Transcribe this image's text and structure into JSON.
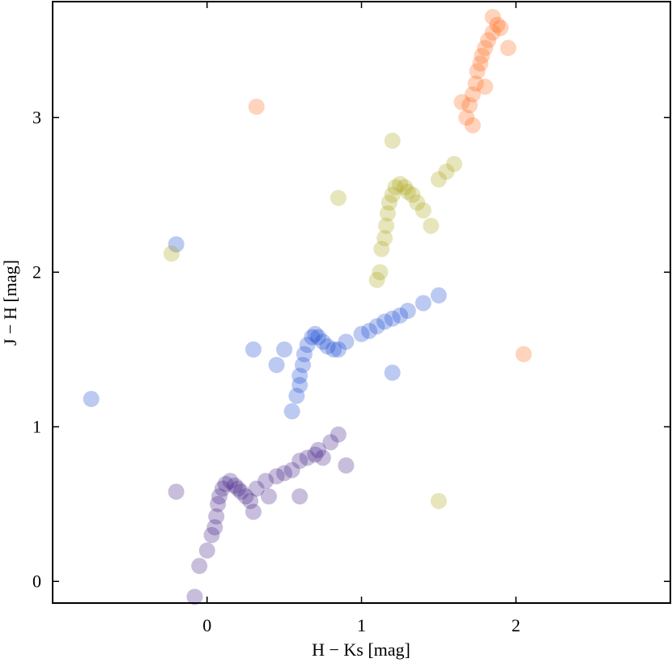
{
  "chart_data": {
    "type": "scatter",
    "xlabel": "H − Ks [mag]",
    "ylabel": "J − H [mag]",
    "xlim": [
      -1.0,
      3.0
    ],
    "ylim": [
      -0.14,
      3.75
    ],
    "xticks": [
      0,
      1,
      2
    ],
    "yticks": [
      0,
      1,
      2,
      3
    ],
    "series": [
      {
        "color": "#3a1480",
        "x": [
          0.03,
          0.05,
          0.06,
          0.07,
          0.08,
          0.1,
          0.12,
          0.15,
          0.18,
          0.2,
          0.22,
          0.25,
          0.28,
          0.32,
          0.38,
          0.45,
          0.5,
          0.55,
          0.6,
          0.65,
          0.7,
          0.72,
          0.75,
          0.8,
          0.85,
          0.0,
          -0.05,
          0.3,
          0.4,
          -0.2,
          0.9,
          0.6,
          -0.08
        ],
        "values": [
          0.3,
          0.35,
          0.42,
          0.5,
          0.55,
          0.6,
          0.63,
          0.65,
          0.62,
          0.6,
          0.58,
          0.55,
          0.52,
          0.6,
          0.65,
          0.68,
          0.7,
          0.72,
          0.78,
          0.8,
          0.82,
          0.85,
          0.8,
          0.9,
          0.95,
          0.2,
          0.1,
          0.45,
          0.55,
          0.58,
          0.75,
          0.55,
          -0.1
        ]
      },
      {
        "color": "#1040d0",
        "x": [
          0.58,
          0.6,
          0.6,
          0.62,
          0.63,
          0.65,
          0.68,
          0.7,
          0.72,
          0.75,
          0.78,
          0.82,
          0.85,
          0.9,
          1.0,
          1.05,
          1.1,
          1.15,
          1.2,
          1.25,
          1.3,
          0.45,
          0.5,
          0.55,
          1.4,
          1.5,
          -0.75,
          -0.2,
          0.3,
          1.2
        ],
        "values": [
          1.2,
          1.27,
          1.33,
          1.4,
          1.47,
          1.53,
          1.58,
          1.6,
          1.58,
          1.55,
          1.52,
          1.5,
          1.5,
          1.55,
          1.6,
          1.62,
          1.65,
          1.68,
          1.7,
          1.72,
          1.75,
          1.4,
          1.5,
          1.1,
          1.8,
          1.85,
          1.18,
          2.18,
          1.5,
          1.35
        ]
      },
      {
        "color": "#a8a010",
        "x": [
          1.13,
          1.15,
          1.16,
          1.17,
          1.18,
          1.2,
          1.22,
          1.25,
          1.28,
          1.3,
          1.33,
          1.36,
          1.4,
          1.12,
          1.1,
          1.45,
          1.5,
          1.6,
          1.55,
          0.85,
          1.5,
          -0.23,
          1.2
        ],
        "values": [
          2.15,
          2.22,
          2.3,
          2.38,
          2.45,
          2.5,
          2.55,
          2.57,
          2.55,
          2.52,
          2.5,
          2.45,
          2.4,
          2.0,
          1.95,
          2.3,
          2.6,
          2.7,
          2.65,
          2.48,
          0.52,
          2.12,
          2.85
        ]
      },
      {
        "color": "#ff6010",
        "x": [
          1.68,
          1.7,
          1.72,
          1.74,
          1.75,
          1.77,
          1.78,
          1.8,
          1.82,
          1.85,
          1.88,
          1.9,
          1.72,
          1.8,
          1.95,
          0.32,
          2.05,
          1.65,
          1.85
        ],
        "values": [
          3.0,
          3.08,
          3.15,
          3.22,
          3.3,
          3.35,
          3.4,
          3.45,
          3.5,
          3.55,
          3.6,
          3.58,
          2.95,
          3.2,
          3.45,
          3.07,
          1.47,
          3.1,
          3.65
        ]
      }
    ]
  }
}
